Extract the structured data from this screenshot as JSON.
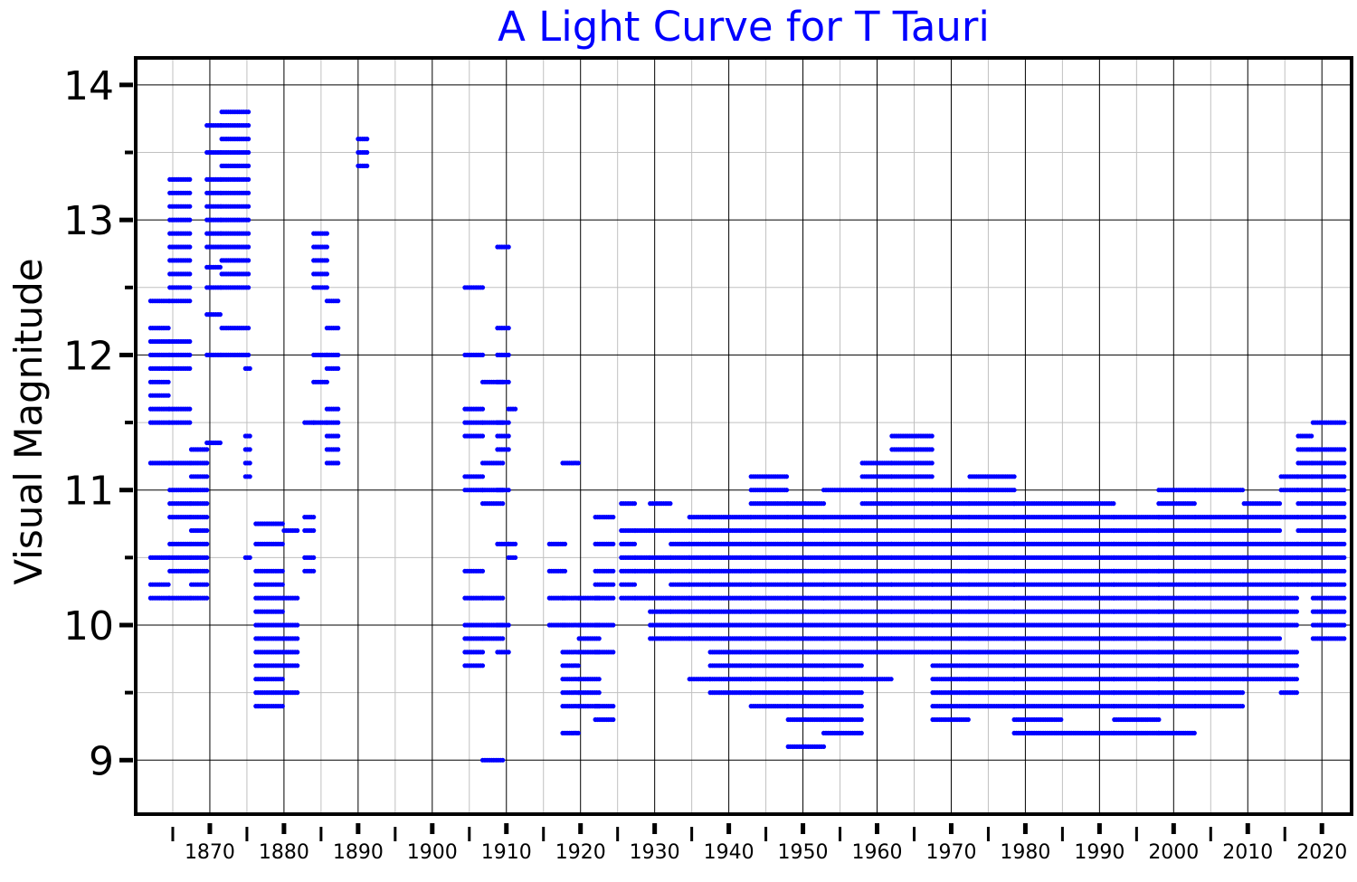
{
  "chart_data": {
    "type": "scatter",
    "title": "A Light Curve for T Tauri",
    "xlabel": "",
    "ylabel": "Visual Magnitude",
    "xlim": [
      1860,
      2024
    ],
    "ylim": [
      14.2,
      8.6
    ],
    "y_inverted": true,
    "x_ticks": [
      1870,
      1880,
      1890,
      1900,
      1910,
      1920,
      1930,
      1940,
      1950,
      1960,
      1970,
      1980,
      1990,
      2000,
      2010,
      2020
    ],
    "x_minor_ticks": [
      1865,
      1875,
      1885,
      1895,
      1905,
      1915,
      1925,
      1935,
      1945,
      1955,
      1965,
      1975,
      1985,
      1995,
      2005,
      2015
    ],
    "y_ticks": [
      9,
      10,
      11,
      12,
      13,
      14
    ],
    "y_tick_labels": [
      "9",
      "10",
      "11",
      "12",
      "13",
      "14"
    ],
    "y_minor_ticks": [
      9.5,
      10.5,
      11.5,
      12.5,
      13.5
    ],
    "grid": true,
    "marker_color": "#0000ff",
    "title_color": "#0000ff",
    "series": [
      {
        "name": "",
        "x_step": 0.3,
        "mag_step": 0.1,
        "year_groups": [
          {
            "x": [
              1862.0,
              1864.5
            ],
            "mags": [
              10.2,
              10.3,
              10.5,
              11.2,
              11.5,
              11.6,
              11.7,
              11.8,
              11.9,
              12.0,
              12.1,
              12.2,
              12.4
            ]
          },
          {
            "x": [
              1864.6,
              1867.5
            ],
            "mags": [
              10.2,
              10.4,
              10.5,
              10.6,
              10.8,
              10.9,
              11.0,
              11.2,
              11.5,
              11.6,
              11.9,
              12.0,
              12.1,
              12.4,
              12.5,
              12.6,
              12.7,
              12.8,
              12.9,
              13.0,
              13.1,
              13.2,
              13.3
            ]
          },
          {
            "x": [
              1867.5,
              1869.7
            ],
            "mags": [
              10.2,
              10.3,
              10.4,
              10.5,
              10.6,
              10.7,
              10.8,
              10.9,
              11.0,
              11.1,
              11.2,
              11.3
            ]
          },
          {
            "x": [
              1869.6,
              1871.6
            ],
            "mags": [
              11.35,
              12.0,
              12.3,
              12.5,
              12.65,
              12.8,
              12.9,
              13.0,
              13.1,
              13.2,
              13.3,
              13.5,
              13.7
            ]
          },
          {
            "x": [
              1871.6,
              1875.3
            ],
            "mags": [
              12.0,
              12.2,
              12.5,
              12.6,
              12.7,
              12.8,
              12.9,
              13.0,
              13.1,
              13.2,
              13.3,
              13.4,
              13.5,
              13.6,
              13.7,
              13.8
            ]
          },
          {
            "x": [
              1874.8,
              1875.6
            ],
            "mags": [
              10.5,
              11.1,
              11.2,
              11.3,
              11.4,
              11.9
            ]
          },
          {
            "x": [
              1876.2,
              1880.0
            ],
            "mags": [
              9.4,
              9.5,
              9.6,
              9.7,
              9.8,
              9.9,
              10.0,
              10.1,
              10.2,
              10.3,
              10.4,
              10.6,
              10.75
            ]
          },
          {
            "x": [
              1880.0,
              1882.0
            ],
            "mags": [
              9.5,
              9.7,
              9.8,
              9.9,
              10.0,
              10.2,
              10.7
            ]
          },
          {
            "x": [
              1882.8,
              1884.0
            ],
            "mags": [
              10.4,
              10.5,
              10.7,
              10.8,
              11.5
            ]
          },
          {
            "x": [
              1884.0,
              1885.8
            ],
            "mags": [
              11.5,
              11.8,
              12.0,
              12.5,
              12.6,
              12.7,
              12.8,
              12.9
            ]
          },
          {
            "x": [
              1885.8,
              1887.5
            ],
            "mags": [
              11.2,
              11.3,
              11.4,
              11.5,
              11.6,
              11.9,
              12.0,
              12.2,
              12.4
            ]
          },
          {
            "x": [
              1890.0,
              1891.2
            ],
            "mags": [
              13.4,
              13.5,
              13.6
            ]
          },
          {
            "x": [
              1904.4,
              1906.8
            ],
            "mags": [
              9.7,
              9.8,
              9.9,
              10.0,
              10.2,
              10.4,
              11.0,
              11.1,
              11.4,
              11.5,
              11.6,
              12.0,
              12.5
            ]
          },
          {
            "x": [
              1906.8,
              1909.5
            ],
            "mags": [
              9.0,
              9.9,
              10.0,
              10.2,
              10.9,
              11.0,
              11.2,
              11.5,
              11.8
            ]
          },
          {
            "x": [
              1908.8,
              1910.3
            ],
            "mags": [
              9.8,
              10.0,
              10.6,
              11.0,
              11.3,
              11.4,
              11.5,
              11.8,
              12.0,
              12.2,
              12.8
            ]
          },
          {
            "x": [
              1910.3,
              1911.3
            ],
            "mags": [
              10.5,
              10.6,
              11.6
            ]
          },
          {
            "x": [
              1915.8,
              1918.0
            ],
            "mags": [
              10.0,
              10.2,
              10.4,
              10.6
            ]
          },
          {
            "x": [
              1917.6,
              1919.8
            ],
            "mags": [
              9.2,
              9.4,
              9.5,
              9.6,
              9.7,
              9.8,
              10.0,
              10.2,
              11.2
            ]
          },
          {
            "x": [
              1919.8,
              1922.5
            ],
            "mags": [
              9.4,
              9.5,
              9.6,
              9.8,
              9.9,
              10.0,
              10.2
            ]
          },
          {
            "x": [
              1922.0,
              1924.6
            ],
            "mags": [
              9.3,
              9.4,
              9.8,
              10.0,
              10.2,
              10.3,
              10.4,
              10.6,
              10.8
            ]
          },
          {
            "x": [
              1925.5,
              1927.4
            ],
            "mags": [
              10.2,
              10.3,
              10.4,
              10.5,
              10.6,
              10.7,
              10.9
            ]
          },
          {
            "x": [
              1927.4,
              1929.4
            ],
            "mags": [
              10.2,
              10.4,
              10.5,
              10.7
            ]
          },
          {
            "x": [
              1929.4,
              1932.2
            ],
            "mags": [
              9.9,
              10.0,
              10.1,
              10.2,
              10.4,
              10.5,
              10.7,
              10.9
            ]
          },
          {
            "x": [
              1932.2,
              1934.7
            ],
            "mags": [
              9.9,
              10.0,
              10.1,
              10.2,
              10.3,
              10.4,
              10.5,
              10.6,
              10.7
            ]
          },
          {
            "x": [
              1934.7,
              1937.5
            ],
            "mags": [
              9.6,
              9.9,
              10.0,
              10.1,
              10.2,
              10.3,
              10.4,
              10.5,
              10.6,
              10.7,
              10.8
            ]
          },
          {
            "x": [
              1937.5,
              1943.0
            ],
            "mags": [
              9.5,
              9.6,
              9.7,
              9.8,
              9.9,
              10.0,
              10.1,
              10.2,
              10.3,
              10.4,
              10.5,
              10.6,
              10.7,
              10.8
            ]
          },
          {
            "x": [
              1943.0,
              1948.0
            ],
            "mags": [
              9.4,
              9.5,
              9.6,
              9.7,
              9.8,
              9.9,
              10.0,
              10.1,
              10.2,
              10.3,
              10.4,
              10.5,
              10.6,
              10.7,
              10.8,
              10.9,
              11.0,
              11.1
            ]
          },
          {
            "x": [
              1948.0,
              1952.8
            ],
            "mags": [
              9.1,
              9.3,
              9.4,
              9.5,
              9.6,
              9.7,
              9.8,
              9.9,
              10.0,
              10.1,
              10.2,
              10.3,
              10.4,
              10.5,
              10.6,
              10.7,
              10.8,
              10.9
            ]
          },
          {
            "x": [
              1952.8,
              1958.0
            ],
            "mags": [
              9.2,
              9.3,
              9.4,
              9.5,
              9.6,
              9.7,
              9.8,
              9.9,
              10.0,
              10.1,
              10.2,
              10.3,
              10.4,
              10.5,
              10.6,
              10.7,
              10.8,
              11.0
            ]
          },
          {
            "x": [
              1958.0,
              1962.0
            ],
            "mags": [
              9.6,
              9.8,
              9.9,
              10.0,
              10.1,
              10.2,
              10.3,
              10.4,
              10.5,
              10.6,
              10.7,
              10.8,
              10.9,
              11.0,
              11.1,
              11.2
            ]
          },
          {
            "x": [
              1962.0,
              1967.5
            ],
            "mags": [
              9.8,
              9.9,
              10.0,
              10.1,
              10.2,
              10.3,
              10.4,
              10.5,
              10.6,
              10.7,
              10.8,
              10.9,
              11.0,
              11.1,
              11.2,
              11.3,
              11.4
            ]
          },
          {
            "x": [
              1967.5,
              1972.5
            ],
            "mags": [
              9.3,
              9.4,
              9.5,
              9.6,
              9.7,
              9.8,
              9.9,
              10.0,
              10.1,
              10.2,
              10.3,
              10.4,
              10.5,
              10.6,
              10.7,
              10.8,
              10.9,
              11.0
            ]
          },
          {
            "x": [
              1972.5,
              1978.5
            ],
            "mags": [
              9.4,
              9.5,
              9.6,
              9.7,
              9.8,
              9.9,
              10.0,
              10.1,
              10.2,
              10.3,
              10.4,
              10.5,
              10.6,
              10.7,
              10.8,
              10.9,
              11.0,
              11.1
            ]
          },
          {
            "x": [
              1978.5,
              1985.0
            ],
            "mags": [
              9.2,
              9.3,
              9.4,
              9.5,
              9.6,
              9.7,
              9.8,
              9.9,
              10.0,
              10.1,
              10.2,
              10.3,
              10.4,
              10.5,
              10.6,
              10.7,
              10.8,
              10.9
            ]
          },
          {
            "x": [
              1985.0,
              1992.0
            ],
            "mags": [
              9.2,
              9.4,
              9.5,
              9.6,
              9.7,
              9.8,
              9.9,
              10.0,
              10.1,
              10.2,
              10.3,
              10.4,
              10.5,
              10.6,
              10.7,
              10.8,
              10.9
            ]
          },
          {
            "x": [
              1992.0,
              1998.0
            ],
            "mags": [
              9.2,
              9.3,
              9.4,
              9.5,
              9.6,
              9.7,
              9.8,
              9.9,
              10.0,
              10.1,
              10.2,
              10.3,
              10.4,
              10.5,
              10.6,
              10.7,
              10.8
            ]
          },
          {
            "x": [
              1998.0,
              2003.0
            ],
            "mags": [
              9.2,
              9.4,
              9.5,
              9.6,
              9.7,
              9.8,
              9.9,
              10.0,
              10.1,
              10.2,
              10.3,
              10.4,
              10.5,
              10.6,
              10.7,
              10.8,
              10.9,
              11.0
            ]
          },
          {
            "x": [
              2003.0,
              2009.5
            ],
            "mags": [
              9.4,
              9.5,
              9.6,
              9.7,
              9.8,
              9.9,
              10.0,
              10.1,
              10.2,
              10.3,
              10.4,
              10.5,
              10.6,
              10.7,
              10.8,
              11.0
            ]
          },
          {
            "x": [
              2009.5,
              2014.5
            ],
            "mags": [
              9.6,
              9.7,
              9.8,
              9.9,
              10.0,
              10.1,
              10.2,
              10.3,
              10.4,
              10.5,
              10.6,
              10.7,
              10.8,
              10.9
            ]
          },
          {
            "x": [
              2014.5,
              2016.8
            ],
            "mags": [
              9.5,
              9.6,
              9.7,
              9.8,
              10.0,
              10.1,
              10.2,
              10.3,
              10.4,
              10.5,
              10.6,
              10.8,
              11.0,
              11.1
            ]
          },
          {
            "x": [
              2016.8,
              2018.8
            ],
            "mags": [
              10.3,
              10.4,
              10.5,
              10.6,
              10.7,
              10.8,
              10.9,
              11.0,
              11.1,
              11.2,
              11.3,
              11.4
            ]
          },
          {
            "x": [
              2018.8,
              2023.2
            ],
            "mags": [
              9.9,
              10.0,
              10.1,
              10.2,
              10.3,
              10.4,
              10.5,
              10.6,
              10.7,
              10.8,
              10.9,
              11.0,
              11.1,
              11.2,
              11.3,
              11.5
            ]
          }
        ]
      }
    ]
  }
}
